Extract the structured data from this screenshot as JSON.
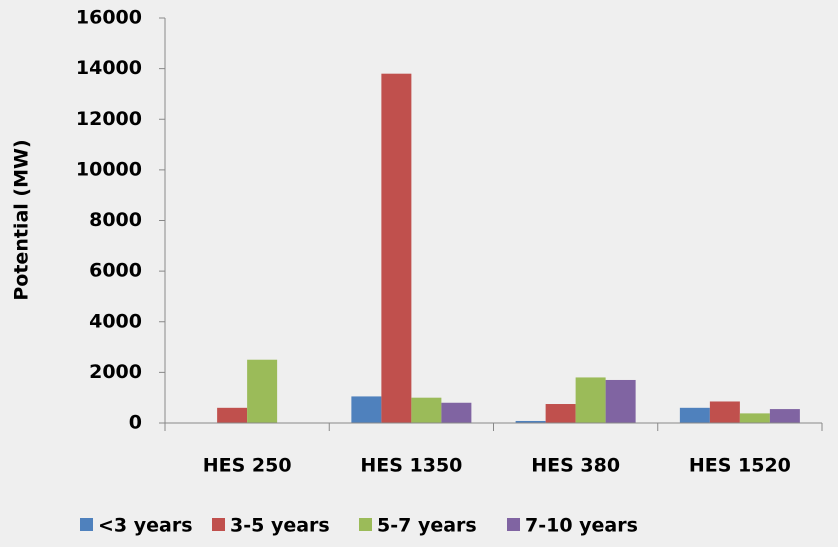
{
  "chart_data": {
    "type": "bar",
    "y_label": "Potential (MW)",
    "categories": [
      "HES 250",
      "HES 1350",
      "HES 380",
      "HES 1520"
    ],
    "series": [
      {
        "name": "<3 years",
        "color": "#4f81bd",
        "values": [
          0,
          1050,
          80,
          600
        ]
      },
      {
        "name": "3-5 years",
        "color": "#c0504d",
        "values": [
          600,
          13800,
          750,
          850
        ]
      },
      {
        "name": "5-7 years",
        "color": "#9bbb59",
        "values": [
          2500,
          1000,
          1800,
          380
        ]
      },
      {
        "name": "7-10 years",
        "color": "#8064a2",
        "values": [
          0,
          800,
          1700,
          550
        ]
      }
    ],
    "ylim": [
      0,
      16000
    ],
    "yticks": [
      0,
      2000,
      4000,
      6000,
      8000,
      10000,
      12000,
      14000,
      16000
    ],
    "grid": false,
    "legend": "bottom"
  }
}
